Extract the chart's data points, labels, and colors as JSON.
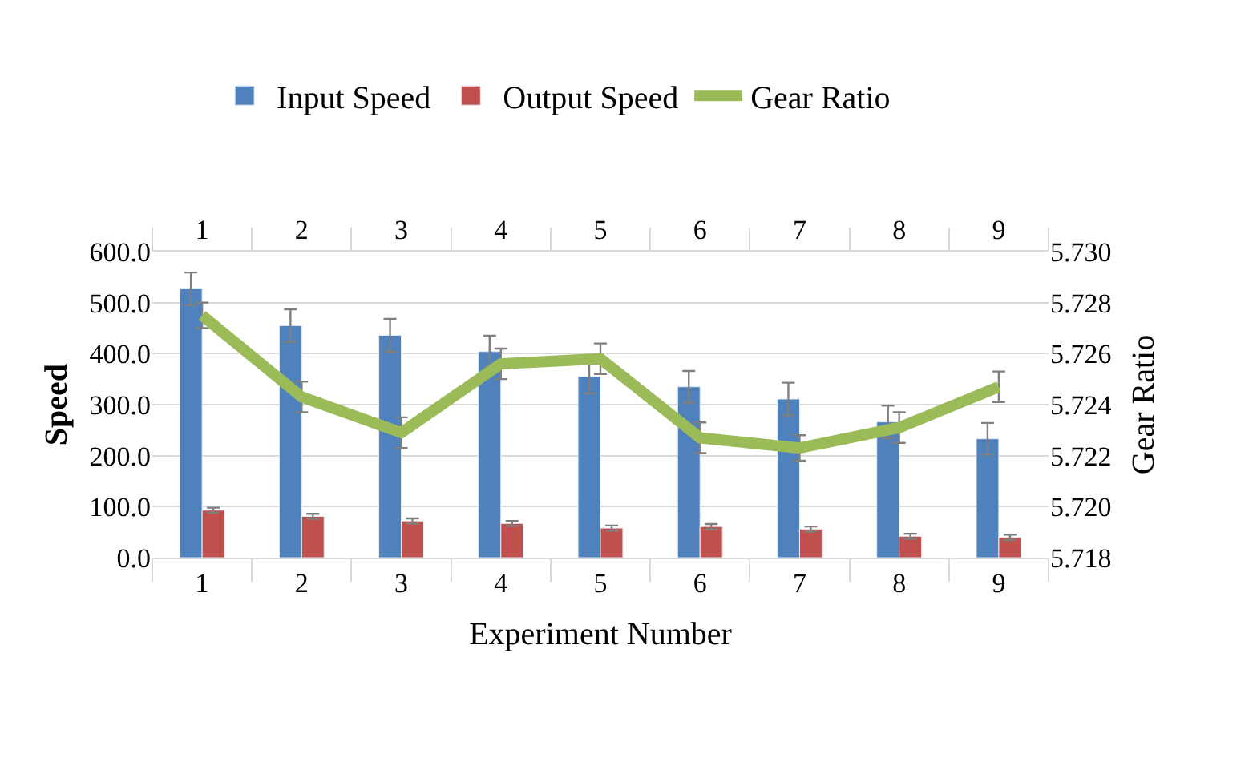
{
  "chart_data": {
    "type": "bar",
    "categories": [
      "1",
      "2",
      "3",
      "4",
      "5",
      "6",
      "7",
      "8",
      "9"
    ],
    "series": [
      {
        "name": "Input Speed",
        "color": "#4f81bd",
        "values": [
          527,
          455,
          436,
          404,
          355,
          335,
          311,
          266,
          233
        ],
        "errors": [
          32,
          32,
          32,
          31,
          33,
          31,
          32,
          32,
          31
        ]
      },
      {
        "name": "Output Speed",
        "color": "#c0504d",
        "values": [
          93,
          81,
          72,
          67,
          58,
          61,
          56,
          42,
          40
        ],
        "errors": [
          5,
          5,
          5,
          5,
          5,
          5,
          5,
          5,
          5
        ]
      },
      {
        "name": "Gear Ratio",
        "type": "line",
        "axis": "y2",
        "color": "#9bbb59",
        "values": [
          5.7275,
          5.7243,
          5.7229,
          5.7256,
          5.7258,
          5.7227,
          5.7223,
          5.7231,
          5.7247
        ],
        "errors": [
          0.0005,
          0.0006,
          0.0006,
          0.0006,
          0.0006,
          0.0006,
          0.0005,
          0.0006,
          0.0006
        ]
      }
    ],
    "xlabel": "Experiment Number",
    "ylabel": "Speed",
    "y2label": "Gear Ratio",
    "ylim": [
      0,
      600
    ],
    "yticks": [
      {
        "value": 0,
        "label": "0.0"
      },
      {
        "value": 100,
        "label": "100.0"
      },
      {
        "value": 200,
        "label": "200.0"
      },
      {
        "value": 300,
        "label": "300.0"
      },
      {
        "value": 400,
        "label": "400.0"
      },
      {
        "value": 500,
        "label": "500.0"
      },
      {
        "value": 600,
        "label": "600.0"
      }
    ],
    "y2lim": [
      5.718,
      5.73
    ],
    "y2ticks": [
      5.718,
      {
        "value": 5.72,
        "label": "5.720"
      },
      5.722,
      5.724,
      5.726,
      5.728,
      {
        "value": 5.73,
        "label": "5.730"
      }
    ],
    "x2lim": [
      0.5,
      9.5
    ],
    "x2ticks": [
      1,
      2,
      3,
      4,
      5,
      6,
      7,
      8,
      9
    ],
    "grid": "y",
    "legend": "top",
    "marker": "none",
    "line_style": "solid"
  }
}
